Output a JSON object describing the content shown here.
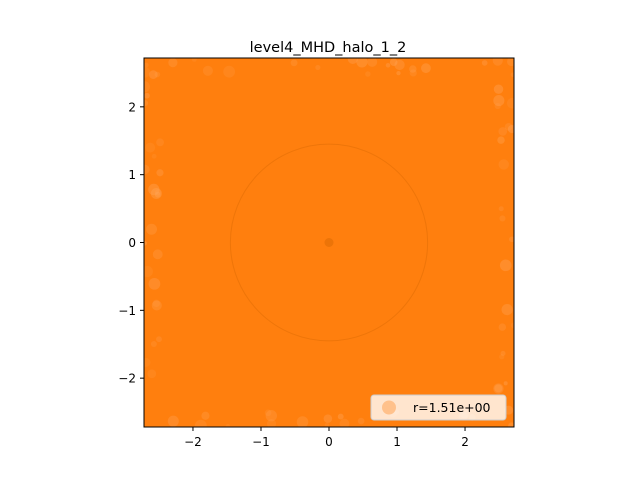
{
  "chart_data": {
    "type": "scatter",
    "title": "level4_MHD_halo_1_2",
    "xlabel": "",
    "ylabel": "",
    "xlim": [
      -2.72,
      2.72
    ],
    "ylim": [
      -2.72,
      2.72
    ],
    "xticks": [
      -2,
      -1,
      0,
      1,
      2
    ],
    "yticks": [
      -2,
      -1,
      0,
      1,
      2
    ],
    "xtick_labels": [
      "−2",
      "−1",
      "0",
      "1",
      "2"
    ],
    "ytick_labels": [
      "−2",
      "−1",
      "0",
      "1",
      "2"
    ],
    "grid": false,
    "series": [
      {
        "name": "r=1.51e+00",
        "color": "#ff7f0e",
        "description": "dense cloud of particles filling the square region",
        "points": [
          [
            0.0,
            0.0
          ]
        ]
      }
    ],
    "circle": {
      "center": [
        0.0,
        0.0
      ],
      "radius": 1.45
    },
    "legend": {
      "position": "lower right",
      "entries": [
        "r=1.51e+00"
      ]
    },
    "colors": {
      "fill": "#ff7f0e",
      "edge_highlight": "#ffa55a",
      "circle": "#e06d05",
      "axis": "#000000"
    }
  }
}
